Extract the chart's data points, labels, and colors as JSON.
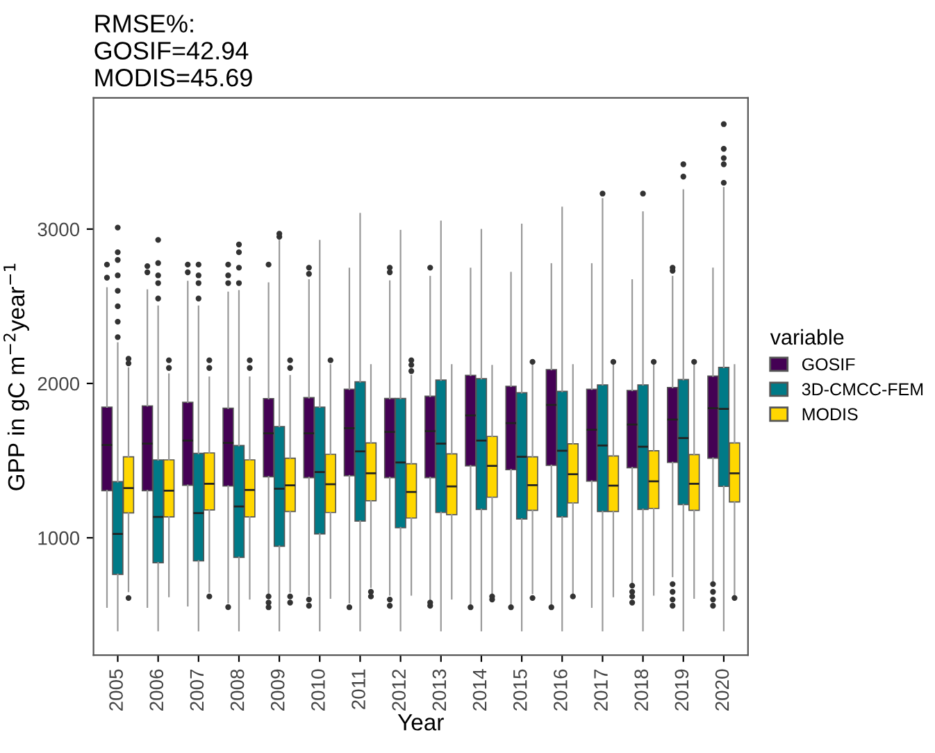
{
  "chart_data": {
    "type": "box",
    "title": "RMSE%:\nGOSIF=42.94\nMODIS=45.69",
    "xlabel": "Year",
    "ylabel": "GPP in gC m$^{−2}$year$^{−1}$",
    "legend_title": "variable",
    "legend": "right",
    "grid": false,
    "categories": [
      "2005",
      "2006",
      "2007",
      "2008",
      "2009",
      "2010",
      "2011",
      "2012",
      "2013",
      "2014",
      "2015",
      "2016",
      "2017",
      "2018",
      "2019",
      "2020"
    ],
    "ylim": [
      240,
      3850
    ],
    "yticks": [
      1000,
      2000,
      3000
    ],
    "series": [
      {
        "name": "GOSIF",
        "color": "#440154",
        "boxes": [
          {
            "low": 551,
            "q1": 1305,
            "median": 1601,
            "q3": 1847,
            "high": 2618,
            "outliers": [
              2685,
              2770
            ]
          },
          {
            "low": 551,
            "q1": 1305,
            "median": 1610,
            "q3": 1855,
            "high": 2605,
            "outliers": [
              2720,
              2760
            ]
          },
          {
            "low": 560,
            "q1": 1340,
            "median": 1630,
            "q3": 1878,
            "high": 2660,
            "outliers": [
              2720,
              2770
            ]
          },
          {
            "low": 580,
            "q1": 1335,
            "median": 1615,
            "q3": 1840,
            "high": 2590,
            "outliers": [
              551,
              2650,
              2700,
              2770
            ]
          },
          {
            "low": 640,
            "q1": 1395,
            "median": 1677,
            "q3": 1902,
            "high": 2650,
            "outliers": [
              550,
              580,
              620,
              2770
            ]
          },
          {
            "low": 630,
            "q1": 1390,
            "median": 1677,
            "q3": 1908,
            "high": 2670,
            "outliers": [
              560,
              600,
              2710,
              2750
            ]
          },
          {
            "low": 580,
            "q1": 1402,
            "median": 1710,
            "q3": 1963,
            "high": 2745,
            "outliers": [
              550
            ]
          },
          {
            "low": 630,
            "q1": 1390,
            "median": 1686,
            "q3": 1903,
            "high": 2663,
            "outliers": [
              560,
              600,
              2720,
              2750
            ]
          },
          {
            "low": 600,
            "q1": 1390,
            "median": 1691,
            "q3": 1917,
            "high": 2692,
            "outliers": [
              560,
              580,
              2750
            ]
          },
          {
            "low": 570,
            "q1": 1466,
            "median": 1793,
            "q3": 2053,
            "high": 2745,
            "outliers": [
              550
            ]
          },
          {
            "low": 570,
            "q1": 1441,
            "median": 1743,
            "q3": 1982,
            "high": 2718,
            "outliers": [
              550
            ]
          },
          {
            "low": 570,
            "q1": 1469,
            "median": 1861,
            "q3": 2090,
            "high": 2774,
            "outliers": [
              550
            ]
          },
          {
            "low": 551,
            "q1": 1367,
            "median": 1700,
            "q3": 1963,
            "high": 2774
          },
          {
            "low": 710,
            "q1": 1454,
            "median": 1734,
            "q3": 1955,
            "high": 2670,
            "outliers": [
              580,
              620,
              650,
              690
            ]
          },
          {
            "low": 750,
            "q1": 1488,
            "median": 1766,
            "q3": 1974,
            "high": 2692,
            "outliers": [
              560,
              600,
              650,
              700,
              2730,
              2750
            ]
          },
          {
            "low": 720,
            "q1": 1516,
            "median": 1840,
            "q3": 2048,
            "high": 2745,
            "outliers": [
              560,
              600,
              650,
              700
            ]
          }
        ]
      },
      {
        "name": "3D-CMCC-FEM",
        "color": "#007a87",
        "boxes": [
          {
            "low": 399,
            "q1": 763,
            "median": 1025,
            "q3": 1364,
            "high": 2262,
            "outliers": [
              2300,
              2400,
              2500,
              2600,
              2700,
              2800,
              2850,
              3010
            ]
          },
          {
            "low": 399,
            "q1": 838,
            "median": 1135,
            "q3": 1505,
            "high": 2500,
            "outliers": [
              2550,
              2650,
              2700,
              2780,
              2930
            ]
          },
          {
            "low": 399,
            "q1": 850,
            "median": 1160,
            "q3": 1547,
            "high": 2500,
            "outliers": [
              2550,
              2650,
              2700,
              2770
            ]
          },
          {
            "low": 399,
            "q1": 873,
            "median": 1203,
            "q3": 1598,
            "high": 2600,
            "outliers": [
              2650,
              2750,
              2850,
              2900
            ]
          },
          {
            "low": 399,
            "q1": 945,
            "median": 1318,
            "q3": 1721,
            "high": 2925,
            "outliers": [
              2950,
              2970
            ]
          },
          {
            "low": 399,
            "q1": 1025,
            "median": 1426,
            "q3": 1847,
            "high": 2925
          },
          {
            "low": 399,
            "q1": 1108,
            "median": 1560,
            "q3": 2011,
            "high": 3100
          },
          {
            "low": 399,
            "q1": 1065,
            "median": 1488,
            "q3": 1903,
            "high": 2990
          },
          {
            "low": 399,
            "q1": 1164,
            "median": 1610,
            "q3": 2022,
            "high": 3050
          },
          {
            "low": 399,
            "q1": 1184,
            "median": 1630,
            "q3": 2031,
            "high": 2996
          },
          {
            "low": 399,
            "q1": 1122,
            "median": 1525,
            "q3": 1940,
            "high": 3030
          },
          {
            "low": 399,
            "q1": 1135,
            "median": 1564,
            "q3": 1949,
            "high": 3140
          },
          {
            "low": 399,
            "q1": 1170,
            "median": 1598,
            "q3": 1991,
            "high": 3196,
            "outliers": [
              3230
            ]
          },
          {
            "low": 399,
            "q1": 1184,
            "median": 1590,
            "q3": 1991,
            "high": 3110,
            "outliers": [
              3230
            ]
          },
          {
            "low": 399,
            "q1": 1215,
            "median": 1646,
            "q3": 2025,
            "high": 3253,
            "outliers": [
              3340,
              3420
            ]
          },
          {
            "low": 399,
            "q1": 1333,
            "median": 1835,
            "q3": 2104,
            "high": 3267,
            "outliers": [
              3300,
              3420,
              3460,
              3520,
              3680
            ]
          }
        ]
      },
      {
        "name": "MODIS",
        "color": "#ffd700",
        "boxes": [
          {
            "low": 653,
            "q1": 1161,
            "median": 1322,
            "q3": 1525,
            "high": 2100,
            "outliers": [
              610,
              2130,
              2160
            ]
          },
          {
            "low": 620,
            "q1": 1135,
            "median": 1305,
            "q3": 1505,
            "high": 2060,
            "outliers": [
              2100,
              2150
            ]
          },
          {
            "low": 650,
            "q1": 1180,
            "median": 1350,
            "q3": 1550,
            "high": 2040,
            "outliers": [
              620,
              2100,
              2150
            ]
          },
          {
            "low": 605,
            "q1": 1135,
            "median": 1310,
            "q3": 1505,
            "high": 2040,
            "outliers": [
              2100,
              2150
            ]
          },
          {
            "low": 650,
            "q1": 1170,
            "median": 1340,
            "q3": 1516,
            "high": 2050,
            "outliers": [
              580,
              620,
              2100,
              2150
            ]
          },
          {
            "low": 610,
            "q1": 1164,
            "median": 1347,
            "q3": 1541,
            "high": 2120,
            "outliers": [
              2150
            ]
          },
          {
            "low": 680,
            "q1": 1240,
            "median": 1418,
            "q3": 1615,
            "high": 2120,
            "outliers": [
              620,
              650
            ]
          },
          {
            "low": 630,
            "q1": 1128,
            "median": 1297,
            "q3": 1480,
            "high": 2050,
            "outliers": [
              2080,
              2120,
              2150
            ]
          },
          {
            "low": 605,
            "q1": 1150,
            "median": 1333,
            "q3": 1544,
            "high": 2120
          },
          {
            "low": 640,
            "q1": 1263,
            "median": 1466,
            "q3": 1657,
            "high": 2115,
            "outliers": [
              600,
              620
            ]
          },
          {
            "low": 640,
            "q1": 1178,
            "median": 1341,
            "q3": 1525,
            "high": 2120,
            "outliers": [
              610,
              2140
            ]
          },
          {
            "low": 640,
            "q1": 1226,
            "median": 1412,
            "q3": 1609,
            "high": 2120,
            "outliers": [
              620
            ]
          },
          {
            "low": 620,
            "q1": 1170,
            "median": 1338,
            "q3": 1530,
            "high": 2120,
            "outliers": [
              2140
            ]
          },
          {
            "low": 630,
            "q1": 1190,
            "median": 1366,
            "q3": 1564,
            "high": 2120,
            "outliers": [
              2140
            ]
          },
          {
            "low": 610,
            "q1": 1178,
            "median": 1350,
            "q3": 1539,
            "high": 2120,
            "outliers": [
              2140
            ]
          },
          {
            "low": 630,
            "q1": 1232,
            "median": 1418,
            "q3": 1615,
            "high": 2120,
            "outliers": [
              610
            ]
          }
        ]
      }
    ]
  }
}
